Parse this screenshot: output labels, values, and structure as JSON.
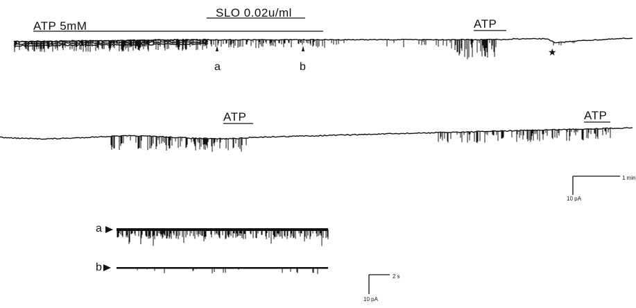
{
  "figure": {
    "ink_color": "#111111",
    "background_color": "#ffffff",
    "bars": {
      "atp_conc": "ATP 5mM",
      "slo": "SLO 0.02u/ml",
      "atp_1": "ATP",
      "atp_2": "ATP",
      "atp_3": "ATP"
    },
    "markers": {
      "a": "a",
      "b": "b"
    },
    "trace_labels": {
      "a": "a",
      "b": "b"
    },
    "scale_bar_1": {
      "current": "10 pA",
      "time": "1 min"
    },
    "scale_bar_2": {
      "current": "10 pA",
      "time": "2 s"
    }
  }
}
